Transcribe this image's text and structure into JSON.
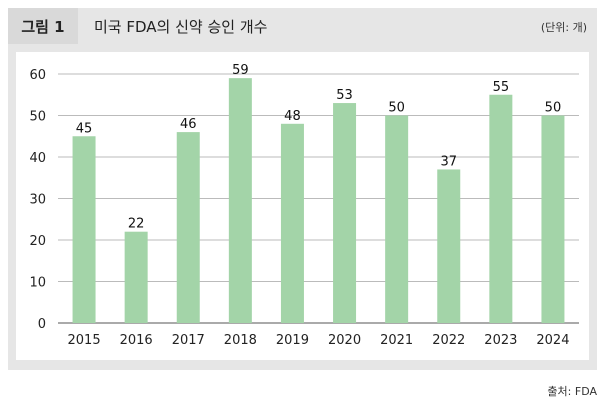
{
  "figure": {
    "label": "그림 1",
    "title": "미국 FDA의 신약 승인 개수",
    "unit": "(단위: 개)",
    "source": "출처: FDA"
  },
  "chart_data": {
    "type": "bar",
    "categories": [
      "2015",
      "2016",
      "2017",
      "2018",
      "2019",
      "2020",
      "2021",
      "2022",
      "2023",
      "2024"
    ],
    "values": [
      45,
      22,
      46,
      59,
      48,
      53,
      50,
      37,
      55,
      50
    ],
    "title": "미국 FDA의 신약 승인 개수",
    "xlabel": "",
    "ylabel": "",
    "ylim": [
      0,
      60
    ],
    "yticks": [
      0,
      10,
      20,
      30,
      40,
      50,
      60
    ],
    "grid": true,
    "bar_color": "#a3d4a8",
    "grid_color": "#bbbbbb"
  }
}
